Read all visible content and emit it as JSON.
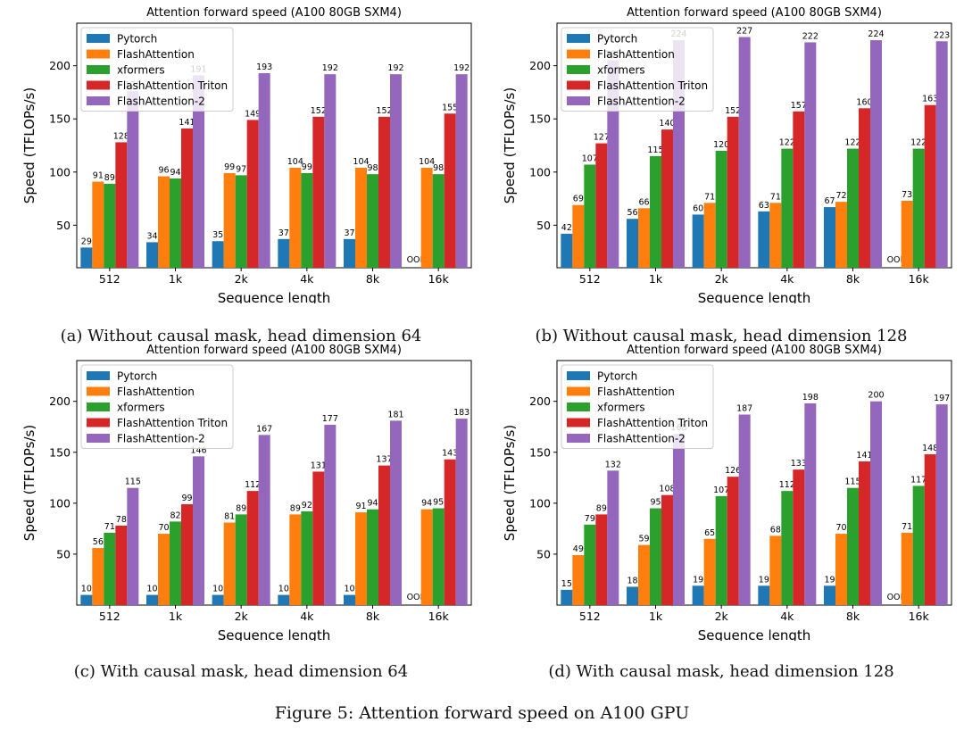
{
  "figure_caption": "Figure 5: Attention forward speed on A100 GPU",
  "colors": [
    "#1f77b4",
    "#ff7f0e",
    "#2ca02c",
    "#d62728",
    "#9467bd"
  ],
  "oom_label": "OOM",
  "chart_data": [
    {
      "type": "bar",
      "title": "Attention forward speed (A100 80GB SXM4)",
      "caption": "(a) Without causal mask, head dimension 64",
      "xlabel": "Sequence length",
      "ylabel": "Speed (TFLOPs/s)",
      "categories": [
        "512",
        "1k",
        "2k",
        "4k",
        "8k",
        "16k"
      ],
      "yticks": [
        50,
        100,
        150,
        200
      ],
      "ylim": [
        10,
        240
      ],
      "legend": "top-left",
      "series": [
        {
          "name": "Pytorch",
          "values": [
            29,
            34,
            35,
            37,
            37,
            null
          ]
        },
        {
          "name": "FlashAttention",
          "values": [
            91,
            96,
            99,
            104,
            104,
            104
          ]
        },
        {
          "name": "xformers",
          "values": [
            89,
            94,
            97,
            99,
            98,
            98
          ]
        },
        {
          "name": "FlashAttention Triton",
          "values": [
            128,
            141,
            149,
            152,
            152,
            155
          ]
        },
        {
          "name": "FlashAttention-2",
          "values": [
            176,
            191,
            193,
            192,
            192,
            192
          ]
        }
      ]
    },
    {
      "type": "bar",
      "title": "Attention forward speed (A100 80GB SXM4)",
      "caption": "(b) Without causal mask, head dimension 128",
      "xlabel": "Sequence length",
      "ylabel": "Speed (TFLOPs/s)",
      "categories": [
        "512",
        "1k",
        "2k",
        "4k",
        "8k",
        "16k"
      ],
      "yticks": [
        50,
        100,
        150,
        200
      ],
      "ylim": [
        10,
        240
      ],
      "legend": "top-left",
      "series": [
        {
          "name": "Pytorch",
          "values": [
            42,
            56,
            60,
            63,
            67,
            null
          ]
        },
        {
          "name": "FlashAttention",
          "values": [
            69,
            66,
            71,
            71,
            72,
            73
          ]
        },
        {
          "name": "xformers",
          "values": [
            107,
            115,
            120,
            122,
            122,
            122
          ]
        },
        {
          "name": "FlashAttention Triton",
          "values": [
            127,
            140,
            152,
            157,
            160,
            163
          ]
        },
        {
          "name": "FlashAttention-2",
          "values": [
            205,
            224,
            227,
            222,
            224,
            223
          ]
        }
      ]
    },
    {
      "type": "bar",
      "title": "Attention forward speed (A100 80GB SXM4)",
      "caption": "(c) With causal mask, head dimension 64",
      "xlabel": "Sequence length",
      "ylabel": "Speed (TFLOPs/s)",
      "categories": [
        "512",
        "1k",
        "2k",
        "4k",
        "8k",
        "16k"
      ],
      "yticks": [
        50,
        100,
        150,
        200
      ],
      "ylim": [
        0,
        240
      ],
      "legend": "top-left",
      "series": [
        {
          "name": "Pytorch",
          "values": [
            10,
            10,
            10,
            10,
            10,
            null
          ]
        },
        {
          "name": "FlashAttention",
          "values": [
            56,
            70,
            81,
            89,
            91,
            94
          ]
        },
        {
          "name": "xformers",
          "values": [
            71,
            82,
            89,
            92,
            94,
            95
          ]
        },
        {
          "name": "FlashAttention Triton",
          "values": [
            78,
            99,
            112,
            131,
            137,
            143
          ]
        },
        {
          "name": "FlashAttention-2",
          "values": [
            115,
            146,
            167,
            177,
            181,
            183
          ]
        }
      ]
    },
    {
      "type": "bar",
      "title": "Attention forward speed (A100 80GB SXM4)",
      "caption": "(d) With causal mask, head dimension 128",
      "xlabel": "Sequence length",
      "ylabel": "Speed (TFLOPs/s)",
      "categories": [
        "512",
        "1k",
        "2k",
        "4k",
        "8k",
        "16k"
      ],
      "yticks": [
        50,
        100,
        150,
        200
      ],
      "ylim": [
        0,
        240
      ],
      "legend": "top-left",
      "series": [
        {
          "name": "Pytorch",
          "values": [
            15,
            18,
            19,
            19,
            19,
            null
          ]
        },
        {
          "name": "FlashAttention",
          "values": [
            49,
            59,
            65,
            68,
            70,
            71
          ]
        },
        {
          "name": "xformers",
          "values": [
            79,
            95,
            107,
            112,
            115,
            117
          ]
        },
        {
          "name": "FlashAttention Triton",
          "values": [
            89,
            108,
            126,
            133,
            141,
            148
          ]
        },
        {
          "name": "FlashAttention-2",
          "values": [
            132,
            168,
            187,
            198,
            200,
            197
          ]
        }
      ]
    }
  ]
}
